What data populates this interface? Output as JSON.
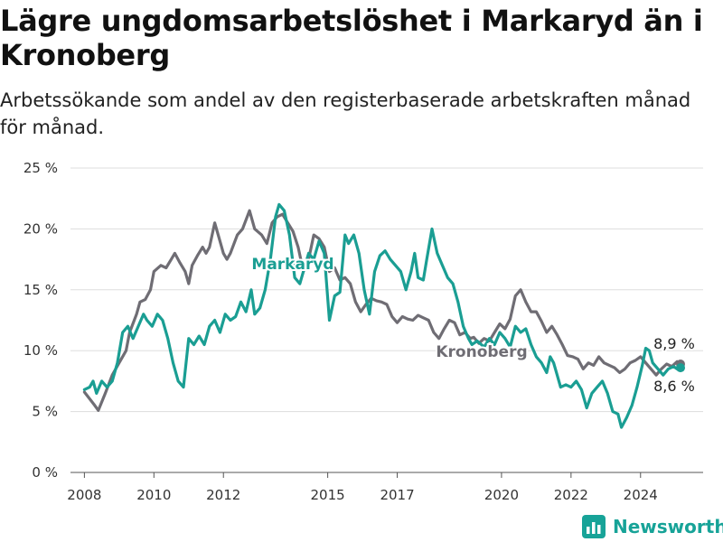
{
  "title": "Lägre ungdomsarbetslöshet i Markaryd än i Kronoberg",
  "subtitle": "Arbetssökande som andel av den registerbaserade arbetskraften månad för månad.",
  "brand": "Newsworthy",
  "colors": {
    "markaryd": "#1a9e93",
    "kronoberg": "#6f6d74",
    "grid": "#dddddd",
    "axis": "#555555"
  },
  "chart_data": {
    "type": "line",
    "ylim": [
      0,
      25
    ],
    "yticks": [
      0,
      5,
      10,
      15,
      20,
      25
    ],
    "ytick_labels": [
      "0 %",
      "5 %",
      "10 %",
      "15 %",
      "20 %",
      "25 %"
    ],
    "xlim": [
      2007.6,
      2025.8
    ],
    "xticks": [
      2008,
      2010,
      2012,
      2015,
      2017,
      2020,
      2022,
      2024
    ],
    "xtick_labels": [
      "2008",
      "2010",
      "2012",
      "2015",
      "2017",
      "2020",
      "2022",
      "2024"
    ],
    "series": [
      {
        "name": "Kronoberg",
        "end_label": "8,9 %",
        "points": [
          [
            2008.0,
            6.6
          ],
          [
            2008.3,
            5.5
          ],
          [
            2008.4,
            5.1
          ],
          [
            2008.6,
            6.5
          ],
          [
            2008.8,
            8.0
          ],
          [
            2009.0,
            9.0
          ],
          [
            2009.2,
            10.0
          ],
          [
            2009.3,
            11.5
          ],
          [
            2009.5,
            13.0
          ],
          [
            2009.6,
            14.0
          ],
          [
            2009.75,
            14.2
          ],
          [
            2009.9,
            15.0
          ],
          [
            2010.0,
            16.5
          ],
          [
            2010.2,
            17.0
          ],
          [
            2010.35,
            16.8
          ],
          [
            2010.5,
            17.5
          ],
          [
            2010.6,
            18.0
          ],
          [
            2010.75,
            17.2
          ],
          [
            2010.9,
            16.5
          ],
          [
            2011.0,
            15.5
          ],
          [
            2011.1,
            17.0
          ],
          [
            2011.25,
            17.8
          ],
          [
            2011.4,
            18.5
          ],
          [
            2011.5,
            18.0
          ],
          [
            2011.6,
            18.5
          ],
          [
            2011.75,
            20.5
          ],
          [
            2011.9,
            19.0
          ],
          [
            2012.0,
            18.0
          ],
          [
            2012.1,
            17.5
          ],
          [
            2012.2,
            18.0
          ],
          [
            2012.4,
            19.5
          ],
          [
            2012.55,
            20.0
          ],
          [
            2012.75,
            21.5
          ],
          [
            2012.9,
            20.0
          ],
          [
            2013.1,
            19.5
          ],
          [
            2013.25,
            18.8
          ],
          [
            2013.4,
            20.5
          ],
          [
            2013.55,
            21.0
          ],
          [
            2013.7,
            21.2
          ],
          [
            2013.85,
            20.5
          ],
          [
            2014.0,
            19.8
          ],
          [
            2014.15,
            18.5
          ],
          [
            2014.3,
            16.5
          ],
          [
            2014.45,
            17.5
          ],
          [
            2014.6,
            19.5
          ],
          [
            2014.75,
            19.2
          ],
          [
            2014.9,
            18.5
          ],
          [
            2015.05,
            16.5
          ],
          [
            2015.2,
            16.8
          ],
          [
            2015.35,
            15.8
          ],
          [
            2015.5,
            16.0
          ],
          [
            2015.65,
            15.5
          ],
          [
            2015.8,
            14.0
          ],
          [
            2015.95,
            13.2
          ],
          [
            2016.1,
            13.8
          ],
          [
            2016.25,
            14.3
          ],
          [
            2016.4,
            14.1
          ],
          [
            2016.55,
            14.0
          ],
          [
            2016.7,
            13.8
          ],
          [
            2016.85,
            12.8
          ],
          [
            2017.0,
            12.3
          ],
          [
            2017.15,
            12.8
          ],
          [
            2017.3,
            12.6
          ],
          [
            2017.45,
            12.5
          ],
          [
            2017.6,
            12.9
          ],
          [
            2017.75,
            12.7
          ],
          [
            2017.9,
            12.5
          ],
          [
            2018.05,
            11.5
          ],
          [
            2018.2,
            11.0
          ],
          [
            2018.35,
            11.8
          ],
          [
            2018.5,
            12.5
          ],
          [
            2018.65,
            12.3
          ],
          [
            2018.8,
            11.3
          ],
          [
            2018.95,
            11.5
          ],
          [
            2019.1,
            11.0
          ],
          [
            2019.2,
            11.1
          ],
          [
            2019.35,
            10.6
          ],
          [
            2019.5,
            11.0
          ],
          [
            2019.65,
            10.8
          ],
          [
            2019.8,
            11.5
          ],
          [
            2019.95,
            12.2
          ],
          [
            2020.1,
            11.8
          ],
          [
            2020.25,
            12.6
          ],
          [
            2020.4,
            14.5
          ],
          [
            2020.55,
            15.0
          ],
          [
            2020.7,
            14.0
          ],
          [
            2020.85,
            13.2
          ],
          [
            2021.0,
            13.2
          ],
          [
            2021.15,
            12.4
          ],
          [
            2021.3,
            11.5
          ],
          [
            2021.45,
            12.0
          ],
          [
            2021.6,
            11.3
          ],
          [
            2021.75,
            10.5
          ],
          [
            2021.9,
            9.6
          ],
          [
            2022.05,
            9.5
          ],
          [
            2022.2,
            9.3
          ],
          [
            2022.35,
            8.5
          ],
          [
            2022.5,
            9.0
          ],
          [
            2022.65,
            8.8
          ],
          [
            2022.8,
            9.5
          ],
          [
            2022.95,
            9.0
          ],
          [
            2023.1,
            8.8
          ],
          [
            2023.25,
            8.6
          ],
          [
            2023.4,
            8.2
          ],
          [
            2023.55,
            8.5
          ],
          [
            2023.7,
            9.0
          ],
          [
            2023.85,
            9.2
          ],
          [
            2024.0,
            9.5
          ],
          [
            2024.15,
            9.0
          ],
          [
            2024.3,
            8.5
          ],
          [
            2024.45,
            8.0
          ],
          [
            2024.6,
            8.5
          ],
          [
            2024.75,
            8.9
          ],
          [
            2024.9,
            8.7
          ],
          [
            2025.05,
            9.1
          ],
          [
            2025.15,
            8.9
          ]
        ]
      },
      {
        "name": "Markaryd",
        "end_label": "8,6 %",
        "points": [
          [
            2008.0,
            6.8
          ],
          [
            2008.15,
            7.0
          ],
          [
            2008.25,
            7.5
          ],
          [
            2008.35,
            6.5
          ],
          [
            2008.5,
            7.5
          ],
          [
            2008.65,
            7.0
          ],
          [
            2008.8,
            7.5
          ],
          [
            2008.95,
            9.0
          ],
          [
            2009.1,
            11.5
          ],
          [
            2009.25,
            12.0
          ],
          [
            2009.4,
            11.0
          ],
          [
            2009.55,
            12.0
          ],
          [
            2009.7,
            13.0
          ],
          [
            2009.8,
            12.5
          ],
          [
            2009.95,
            12.0
          ],
          [
            2010.1,
            13.0
          ],
          [
            2010.25,
            12.5
          ],
          [
            2010.4,
            11.0
          ],
          [
            2010.55,
            9.0
          ],
          [
            2010.7,
            7.5
          ],
          [
            2010.85,
            7.0
          ],
          [
            2011.0,
            11.0
          ],
          [
            2011.15,
            10.5
          ],
          [
            2011.3,
            11.2
          ],
          [
            2011.45,
            10.5
          ],
          [
            2011.6,
            12.0
          ],
          [
            2011.75,
            12.5
          ],
          [
            2011.9,
            11.5
          ],
          [
            2012.05,
            13.0
          ],
          [
            2012.2,
            12.5
          ],
          [
            2012.35,
            12.8
          ],
          [
            2012.5,
            14.0
          ],
          [
            2012.65,
            13.2
          ],
          [
            2012.8,
            15.0
          ],
          [
            2012.9,
            13.0
          ],
          [
            2013.05,
            13.5
          ],
          [
            2013.2,
            15.0
          ],
          [
            2013.35,
            17.5
          ],
          [
            2013.5,
            21.0
          ],
          [
            2013.6,
            22.0
          ],
          [
            2013.75,
            21.5
          ],
          [
            2013.9,
            19.5
          ],
          [
            2014.05,
            16.0
          ],
          [
            2014.2,
            15.5
          ],
          [
            2014.3,
            16.5
          ],
          [
            2014.45,
            18.0
          ],
          [
            2014.6,
            17.5
          ],
          [
            2014.75,
            19.0
          ],
          [
            2014.9,
            18.0
          ],
          [
            2015.05,
            12.5
          ],
          [
            2015.2,
            14.5
          ],
          [
            2015.35,
            14.8
          ],
          [
            2015.5,
            19.5
          ],
          [
            2015.6,
            18.8
          ],
          [
            2015.75,
            19.5
          ],
          [
            2015.9,
            18.0
          ],
          [
            2016.05,
            15.0
          ],
          [
            2016.2,
            13.0
          ],
          [
            2016.35,
            16.5
          ],
          [
            2016.5,
            17.8
          ],
          [
            2016.65,
            18.2
          ],
          [
            2016.8,
            17.5
          ],
          [
            2016.95,
            17.0
          ],
          [
            2017.1,
            16.5
          ],
          [
            2017.25,
            15.0
          ],
          [
            2017.4,
            16.5
          ],
          [
            2017.5,
            18.0
          ],
          [
            2017.6,
            16.0
          ],
          [
            2017.75,
            15.8
          ],
          [
            2017.85,
            17.5
          ],
          [
            2018.0,
            20.0
          ],
          [
            2018.15,
            18.0
          ],
          [
            2018.3,
            17.0
          ],
          [
            2018.45,
            16.0
          ],
          [
            2018.6,
            15.5
          ],
          [
            2018.75,
            14.0
          ],
          [
            2018.9,
            12.0
          ],
          [
            2019.05,
            11.0
          ],
          [
            2019.15,
            10.5
          ],
          [
            2019.3,
            10.8
          ],
          [
            2019.5,
            10.3
          ],
          [
            2019.65,
            11.0
          ],
          [
            2019.8,
            10.5
          ],
          [
            2019.95,
            11.5
          ],
          [
            2020.1,
            11.0
          ],
          [
            2020.25,
            10.3
          ],
          [
            2020.4,
            12.0
          ],
          [
            2020.55,
            11.5
          ],
          [
            2020.7,
            11.8
          ],
          [
            2020.85,
            10.5
          ],
          [
            2021.0,
            9.5
          ],
          [
            2021.15,
            9.0
          ],
          [
            2021.3,
            8.2
          ],
          [
            2021.4,
            9.5
          ],
          [
            2021.5,
            9.0
          ],
          [
            2021.6,
            8.0
          ],
          [
            2021.7,
            7.0
          ],
          [
            2021.85,
            7.2
          ],
          [
            2022.0,
            7.0
          ],
          [
            2022.15,
            7.5
          ],
          [
            2022.3,
            6.8
          ],
          [
            2022.45,
            5.3
          ],
          [
            2022.6,
            6.5
          ],
          [
            2022.75,
            7.0
          ],
          [
            2022.9,
            7.5
          ],
          [
            2023.05,
            6.5
          ],
          [
            2023.2,
            5.0
          ],
          [
            2023.35,
            4.8
          ],
          [
            2023.45,
            3.7
          ],
          [
            2023.6,
            4.5
          ],
          [
            2023.75,
            5.5
          ],
          [
            2023.9,
            7.0
          ],
          [
            2024.05,
            8.8
          ],
          [
            2024.15,
            10.2
          ],
          [
            2024.25,
            10.0
          ],
          [
            2024.35,
            9.0
          ],
          [
            2024.5,
            8.5
          ],
          [
            2024.65,
            8.0
          ],
          [
            2024.8,
            8.5
          ],
          [
            2024.95,
            8.7
          ],
          [
            2025.05,
            8.5
          ],
          [
            2025.15,
            8.6
          ]
        ]
      }
    ]
  }
}
